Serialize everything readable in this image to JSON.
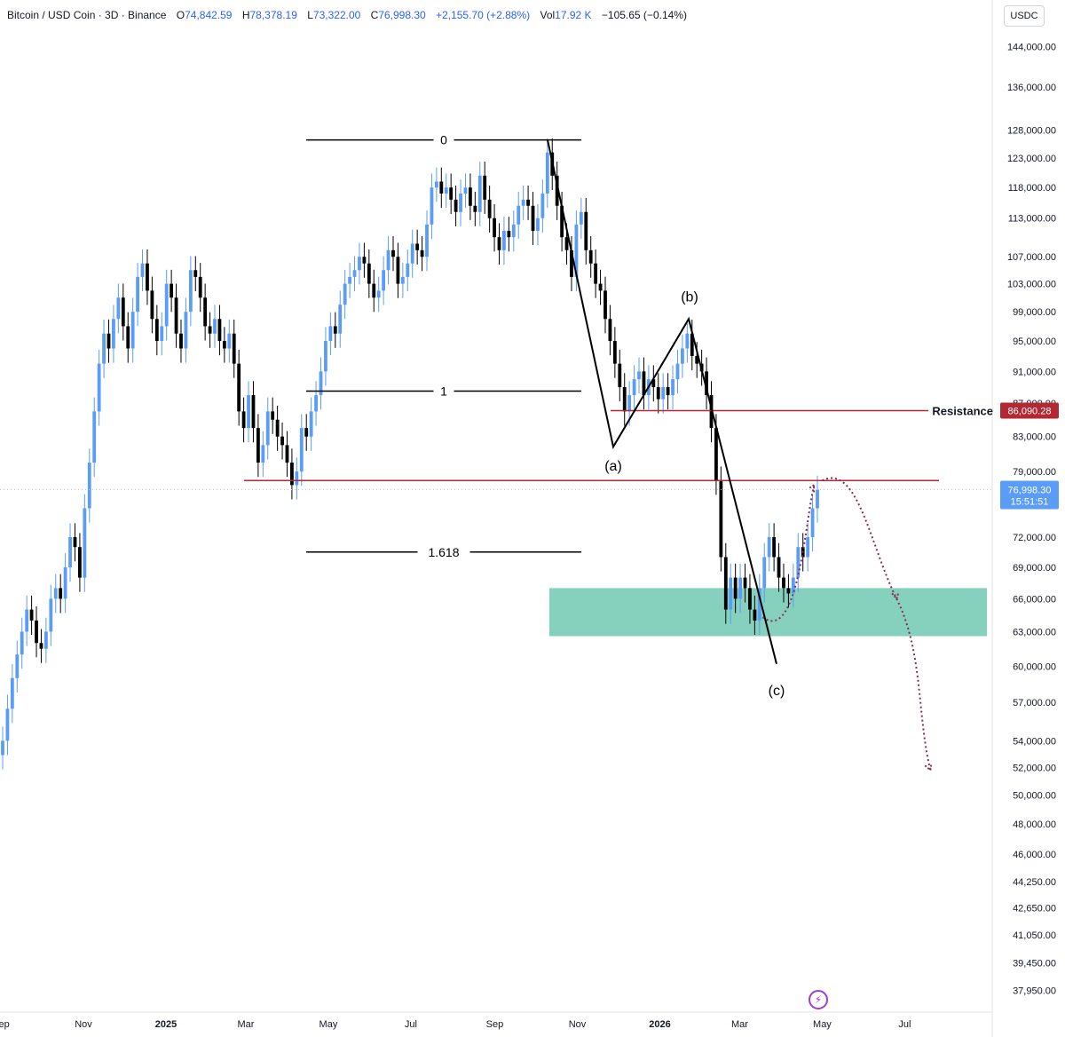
{
  "header": {
    "symbol": "Bitcoin / USD Coin · 3D · Binance",
    "open_label": "O",
    "open": "74,842.59",
    "high_label": "H",
    "high": "78,378.19",
    "low_label": "L",
    "low": "73,322.00",
    "close_label": "C",
    "close": "76,998.30",
    "change": "+2,155.70 (+2.88%)",
    "vol_label": "Vol",
    "vol": "17.92 K",
    "vol_change": "−105.65 (−0.14%)"
  },
  "axis": {
    "unit": "USDC"
  },
  "chart_data": {
    "type": "candlestick",
    "x_axis_labels": [
      "Sep",
      "Nov",
      "2025",
      "Mar",
      "May",
      "Jul",
      "Sep",
      "Nov",
      "2026",
      "Mar",
      "May",
      "Jul"
    ],
    "y_axis_labels": [
      "144,000.00",
      "136,000.00",
      "128,000.00",
      "123,000.00",
      "118,000.00",
      "113,000.00",
      "107,000.00",
      "103,000.00",
      "99,000.00",
      "95,000.00",
      "91,000.00",
      "87,000.00",
      "83,000.00",
      "79,000.00",
      "72,000.00",
      "69,000.00",
      "66,000.00",
      "63,000.00",
      "60,000.00",
      "57,000.00",
      "54,000.00",
      "52,000.00",
      "50,000.00",
      "48,000.00",
      "46,000.00",
      "44,250.00",
      "42,650.00",
      "41,050.00",
      "39,450.00",
      "37,950.00"
    ],
    "y_scale": "log",
    "ylim": [
      37000,
      148000
    ],
    "last_price": {
      "value": "76,998.30",
      "countdown": "15:51:51"
    },
    "resistance": {
      "label": "Resistance",
      "value": "86,090.28",
      "price": 86090.28
    },
    "support_line": 78000,
    "fib_levels": [
      {
        "label": "0",
        "price": 126200
      },
      {
        "label": "1",
        "price": 88500
      },
      {
        "label": "1.618",
        "price": 70500
      }
    ],
    "wave_labels": [
      {
        "label": "(a)",
        "price": 81500
      },
      {
        "label": "(b)",
        "price": 98000
      },
      {
        "label": "(c)",
        "price": 59800
      }
    ],
    "demand_zone": {
      "low": 62600,
      "high": 67000
    },
    "projection_path": [
      {
        "date": "2026-03-18",
        "price": 64300
      },
      {
        "date": "2026-04-25",
        "price": 77500
      },
      {
        "date": "2026-05-01",
        "price": 78000
      },
      {
        "date": "2026-06-25",
        "price": 66000
      },
      {
        "date": "2026-07-20",
        "price": 51800
      }
    ],
    "colors": {
      "up": "#5b9cf6",
      "down": "#000000",
      "resistance": "#b22833",
      "zone": "#7fcdbb",
      "projection": "#8a2c5a"
    }
  }
}
